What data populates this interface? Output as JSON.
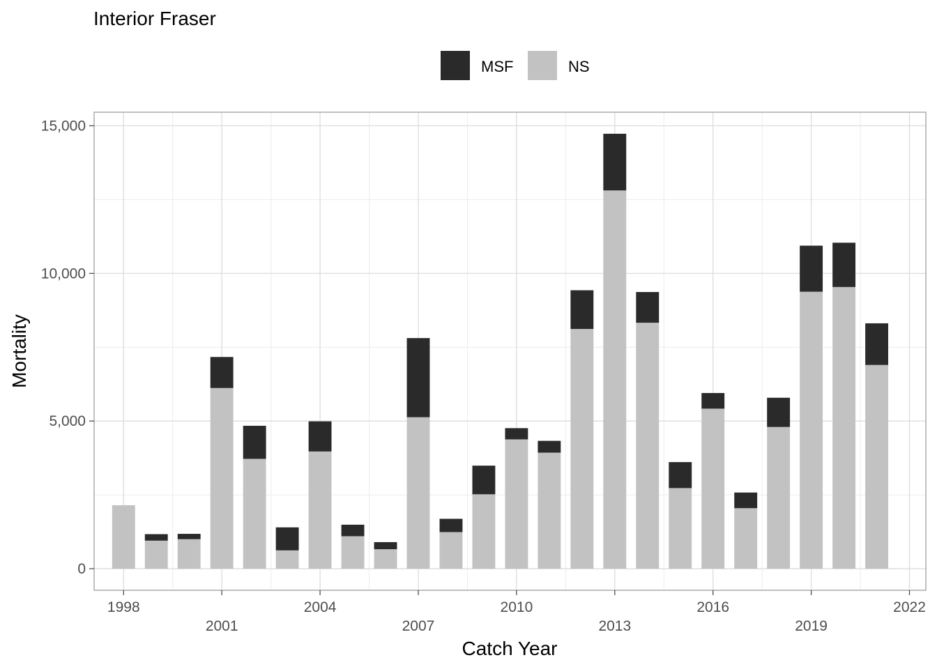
{
  "chart_data": {
    "type": "bar",
    "stacked": true,
    "title": "Interior Fraser",
    "xlabel": "Catch Year",
    "ylabel": "Mortality",
    "x": [
      1998,
      1999,
      2000,
      2001,
      2002,
      2003,
      2004,
      2005,
      2006,
      2007,
      2008,
      2009,
      2010,
      2011,
      2012,
      2013,
      2014,
      2015,
      2016,
      2017,
      2018,
      2019,
      2020,
      2021
    ],
    "series": [
      {
        "name": "NS",
        "color": "#c2c2c2",
        "values": [
          2150,
          950,
          1000,
          6120,
          3720,
          620,
          3970,
          1100,
          660,
          5130,
          1240,
          2520,
          4380,
          3930,
          8120,
          12810,
          8330,
          2730,
          5420,
          2050,
          4800,
          9380,
          9540,
          6900
        ]
      },
      {
        "name": "MSF",
        "color": "#2a2a2a",
        "values": [
          0,
          220,
          180,
          1050,
          1120,
          780,
          1020,
          390,
          240,
          2680,
          450,
          970,
          380,
          400,
          1310,
          1920,
          1040,
          880,
          530,
          530,
          990,
          1560,
          1500,
          1410
        ]
      }
    ],
    "xlim": [
      1997.1,
      2022.5
    ],
    "ylim": [
      -730,
      15460
    ],
    "x_major_ticks": [
      1998,
      2001,
      2004,
      2007,
      2010,
      2013,
      2016,
      2019,
      2022
    ],
    "x_tick_labels": [
      "1998",
      "2001",
      "2004",
      "2007",
      "2010",
      "2013",
      "2016",
      "2019",
      "2022"
    ],
    "y_major_ticks": [
      0,
      5000,
      10000,
      15000
    ],
    "y_tick_labels": [
      "0",
      "5,000",
      "10,000",
      "15,000"
    ],
    "y_minor_ticks": [
      2500,
      7500,
      12500
    ],
    "grid": true,
    "legend_position": "top",
    "legend_order": [
      "MSF",
      "NS"
    ]
  }
}
